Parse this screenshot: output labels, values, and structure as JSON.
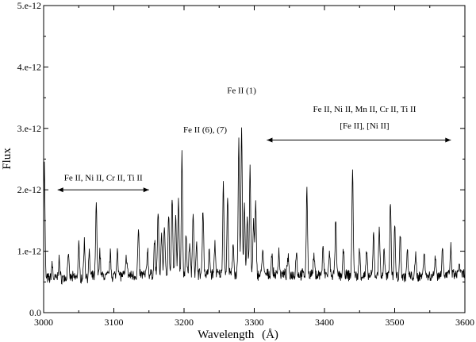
{
  "chart_data": {
    "type": "line",
    "title": "",
    "xlabel": "Wavelength",
    "xlabel_unit": "(Å)",
    "ylabel": "Flux",
    "xlim": [
      3000,
      3600
    ],
    "ylim": [
      0,
      5e-12
    ],
    "x_ticks": [
      3000,
      3100,
      3200,
      3300,
      3400,
      3500,
      3600
    ],
    "x_tick_labels": [
      "3000",
      "3100",
      "3200",
      "3300",
      "3400",
      "3500",
      "3600"
    ],
    "y_ticks": [
      0,
      1e-12,
      2e-12,
      3e-12,
      4e-12,
      5e-12
    ],
    "y_tick_labels": [
      "0.0",
      "1.e-12",
      "2.e-12",
      "3.e-12",
      "4.e-12",
      "5.e-12"
    ],
    "grid": false,
    "series": [
      {
        "baseline": [
          [
            3000,
            5.5e-13
          ],
          [
            3100,
            6e-13
          ],
          [
            3200,
            6.3e-13
          ],
          [
            3300,
            6.2e-13
          ],
          [
            3400,
            6.2e-13
          ],
          [
            3500,
            5.8e-13
          ],
          [
            3600,
            6.2e-13
          ]
        ],
        "lines": [
          [
            3001,
            2.42e-12
          ],
          [
            3012,
            8e-13
          ],
          [
            3022,
            8.8e-13
          ],
          [
            3035,
            9.8e-13
          ],
          [
            3050,
            1.1e-12
          ],
          [
            3058,
            1.15e-12
          ],
          [
            3065,
            9.5e-13
          ],
          [
            3075,
            1.75e-12
          ],
          [
            3080,
            1e-12
          ],
          [
            3095,
            9.5e-13
          ],
          [
            3105,
            1.08e-12
          ],
          [
            3118,
            9.2e-13
          ],
          [
            3135,
            1.32e-12
          ],
          [
            3148,
            1.05e-12
          ],
          [
            3158,
            1.18e-12
          ],
          [
            3163,
            1.65e-12
          ],
          [
            3168,
            1.3e-12
          ],
          [
            3172,
            1.45e-12
          ],
          [
            3178,
            1.62e-12
          ],
          [
            3183,
            1.85e-12
          ],
          [
            3188,
            1.55e-12
          ],
          [
            3192,
            1.9e-12
          ],
          [
            3197,
            2.58e-12
          ],
          [
            3203,
            1.3e-12
          ],
          [
            3208,
            1.15e-12
          ],
          [
            3213,
            1.68e-12
          ],
          [
            3218,
            1.1e-12
          ],
          [
            3227,
            1.72e-12
          ],
          [
            3236,
            1e-12
          ],
          [
            3244,
            1.12e-12
          ],
          [
            3256,
            2.12e-12
          ],
          [
            3262,
            1.85e-12
          ],
          [
            3270,
            1.15e-12
          ],
          [
            3278,
            2.78e-12
          ],
          [
            3282,
            3.05e-12
          ],
          [
            3286,
            1.8e-12
          ],
          [
            3290,
            1.55e-12
          ],
          [
            3294,
            2.35e-12
          ],
          [
            3299,
            1.5e-12
          ],
          [
            3302,
            1.75e-12
          ],
          [
            3312,
            1.05e-12
          ],
          [
            3325,
            9.5e-13
          ],
          [
            3335,
            1.02e-12
          ],
          [
            3348,
            9e-13
          ],
          [
            3360,
            1e-12
          ],
          [
            3375,
            1.98e-12
          ],
          [
            3385,
            9.2e-13
          ],
          [
            3398,
            1.05e-12
          ],
          [
            3407,
            9.5e-13
          ],
          [
            3416,
            1.5e-12
          ],
          [
            3427,
            1e-12
          ],
          [
            3440,
            2.35e-12
          ],
          [
            3450,
            1.02e-12
          ],
          [
            3460,
            9.8e-13
          ],
          [
            3470,
            1.3e-12
          ],
          [
            3478,
            1.42e-12
          ],
          [
            3485,
            1.05e-12
          ],
          [
            3494,
            1.85e-12
          ],
          [
            3500,
            1.45e-12
          ],
          [
            3508,
            1.3e-12
          ],
          [
            3518,
            1e-12
          ],
          [
            3530,
            9.2e-13
          ],
          [
            3542,
            1.05e-12
          ],
          [
            3558,
            9.5e-13
          ],
          [
            3568,
            1.1e-12
          ],
          [
            3580,
            1.05e-12
          ],
          [
            3592,
            8.2e-13
          ]
        ]
      }
    ],
    "annotations": [
      {
        "text": "Fe II, Ni II, Cr II, Ti II",
        "x": 3085,
        "y": 2.15e-12
      },
      {
        "text": "Fe II (6), (7)",
        "x": 3230,
        "y": 2.93e-12
      },
      {
        "text": "Fe II (1)",
        "x": 3282,
        "y": 3.57e-12
      },
      {
        "text": "Fe II, Ni II, Mn II, Cr II, Ti II",
        "x": 3457,
        "y": 3.27e-12
      },
      {
        "text": "[Fe II], [Ni II]",
        "x": 3457,
        "y": 3e-12
      }
    ],
    "arrows": [
      {
        "x_from": 3020,
        "x_to": 3150,
        "y": 2e-12
      },
      {
        "x_from": 3318,
        "x_to": 3580,
        "y": 2.81e-12
      }
    ]
  }
}
